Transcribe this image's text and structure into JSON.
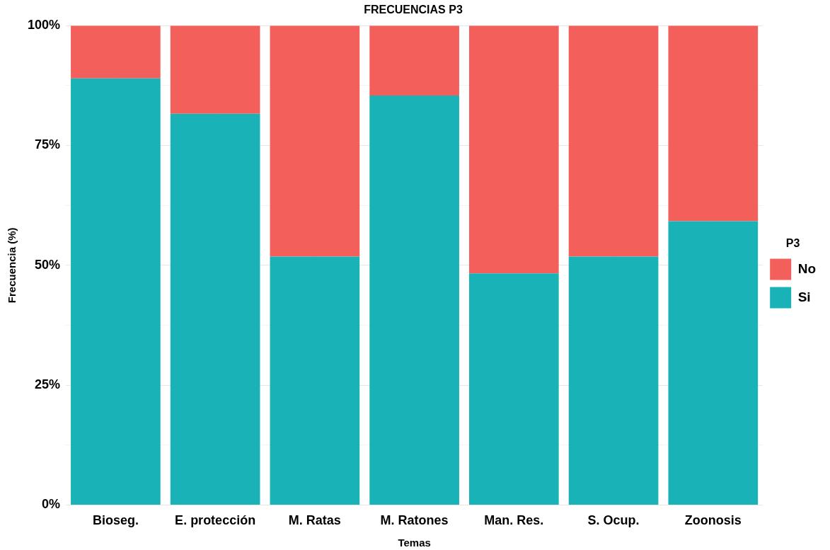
{
  "chart_data": {
    "type": "bar",
    "title": "FRECUENCIAS P3",
    "xlabel": "Temas",
    "ylabel": "Frecuencia (%)",
    "legend_title": "P3",
    "categories": [
      "Bioseg.",
      "E. protección",
      "M. Ratas",
      "M. Ratones",
      "Man. Res.",
      "S. Ocup.",
      "Zoonosis"
    ],
    "series": [
      {
        "name": "Si",
        "color": "#19b3b7",
        "values": [
          89,
          81.6,
          51.8,
          85.4,
          48.3,
          51.8,
          59.2
        ]
      },
      {
        "name": "No",
        "color": "#f3605b",
        "values": [
          11,
          18.4,
          48.2,
          14.6,
          51.7,
          48.2,
          40.8
        ]
      }
    ],
    "stacked": true,
    "ylim": [
      0,
      100
    ],
    "yticks": [
      {
        "value": 0,
        "label": "0%"
      },
      {
        "value": 12.5,
        "label": null
      },
      {
        "value": 25,
        "label": "25%"
      },
      {
        "value": 37.5,
        "label": null
      },
      {
        "value": 50,
        "label": "50%"
      },
      {
        "value": 62.5,
        "label": null
      },
      {
        "value": 75,
        "label": "75%"
      },
      {
        "value": 87.5,
        "label": null
      },
      {
        "value": 100,
        "label": "100%"
      }
    ],
    "grid": true,
    "legend": "right"
  }
}
